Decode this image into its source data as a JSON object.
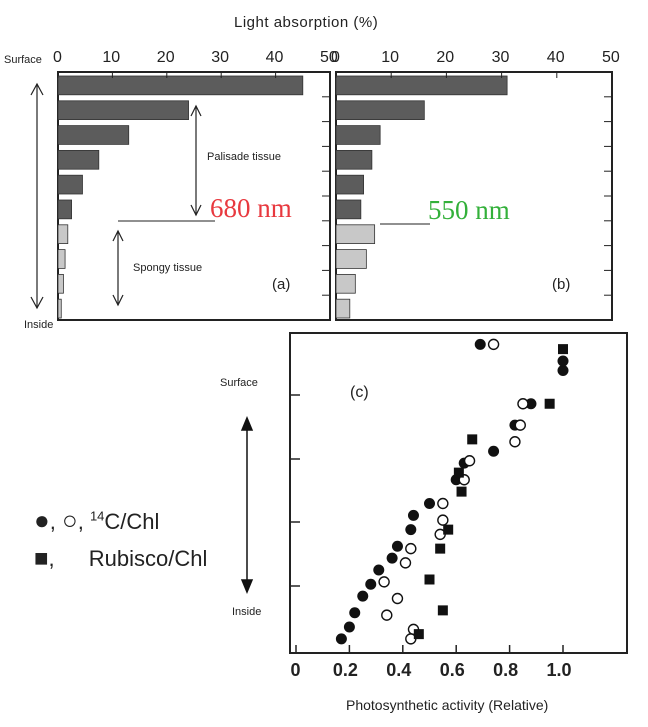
{
  "header": {
    "title": "Light absorption (%)"
  },
  "panel_a": {
    "tag": "(a)",
    "wavelength": "680 nm",
    "wavelength_color": "#e8393f"
  },
  "panel_b": {
    "tag": "(b)",
    "wavelength": "550 nm",
    "wavelength_color": "#33b03a"
  },
  "panel_c": {
    "tag": "(c)"
  },
  "labels": {
    "surface": "Surface",
    "inside": "Inside",
    "palisade": "Palisade tissue",
    "spongy": "Spongy tissue",
    "surface_c": "Surface",
    "inside_c": "Inside"
  },
  "legend": {
    "filled_marker": "●",
    "sep1": ",",
    "open_marker": "○",
    "sep2": ",",
    "carbon_sup": "14",
    "carbon_text": "C/Chl",
    "square_marker": "■",
    "sep3": ",",
    "rubisco_text": "Rubisco/Chl"
  },
  "chart_data": [
    {
      "type": "bar",
      "orientation": "horizontal",
      "panel": "(a)",
      "annotation": "680 nm",
      "xlabel": "Light absorption (%)",
      "xlim": [
        0,
        50
      ],
      "xticks": [
        0,
        10,
        20,
        30,
        40,
        50
      ],
      "values": [
        45,
        24,
        13,
        7.5,
        4.5,
        2.5,
        1.8,
        1.3,
        1.0,
        0.6
      ],
      "tissue": [
        "palisade",
        "palisade",
        "palisade",
        "palisade",
        "palisade",
        "palisade",
        "spongy",
        "spongy",
        "spongy",
        "spongy"
      ]
    },
    {
      "type": "bar",
      "orientation": "horizontal",
      "panel": "(b)",
      "annotation": "550 nm",
      "xlabel": "Light absorption (%)",
      "xlim": [
        0,
        50
      ],
      "xticks": [
        0,
        10,
        20,
        30,
        40,
        50
      ],
      "values": [
        31,
        16,
        8,
        6.5,
        5,
        4.5,
        7,
        5.5,
        3.5,
        2.5
      ],
      "tissue": [
        "palisade",
        "palisade",
        "palisade",
        "palisade",
        "palisade",
        "palisade",
        "spongy",
        "spongy",
        "spongy",
        "spongy"
      ]
    },
    {
      "type": "scatter",
      "panel": "(c)",
      "xlabel": "Photosynthetic activity (Relative)",
      "xlim": [
        0,
        1.2
      ],
      "xticks": [
        "0",
        "0.2",
        "0.4",
        "0.6",
        "0.8",
        "1.0"
      ],
      "xtick_values": [
        0,
        0.2,
        0.4,
        0.6,
        0.8,
        1.0
      ],
      "ylabel_top": "Surface",
      "ylabel_bottom": "Inside",
      "series": [
        {
          "name": "14C/Chl (filled)",
          "marker": "filled-circle",
          "points": [
            [
              0.69,
              0.05
            ],
            [
              1.0,
              0.6
            ],
            [
              1.0,
              0.4
            ],
            [
              0.88,
              1.3
            ],
            [
              0.82,
              1.75
            ],
            [
              0.74,
              2.3
            ],
            [
              0.63,
              2.55
            ],
            [
              0.6,
              2.9
            ],
            [
              0.5,
              3.4
            ],
            [
              0.44,
              3.65
            ],
            [
              0.43,
              3.95
            ],
            [
              0.38,
              4.3
            ],
            [
              0.36,
              4.55
            ],
            [
              0.31,
              4.8
            ],
            [
              0.28,
              5.1
            ],
            [
              0.25,
              5.35
            ],
            [
              0.22,
              5.7
            ],
            [
              0.2,
              6.0
            ],
            [
              0.17,
              6.25
            ]
          ]
        },
        {
          "name": "14C/Chl (open)",
          "marker": "open-circle",
          "points": [
            [
              0.74,
              0.05
            ],
            [
              0.85,
              1.3
            ],
            [
              0.84,
              1.75
            ],
            [
              0.82,
              2.1
            ],
            [
              0.65,
              2.5
            ],
            [
              0.63,
              2.9
            ],
            [
              0.55,
              3.4
            ],
            [
              0.55,
              3.75
            ],
            [
              0.54,
              4.05
            ],
            [
              0.43,
              4.35
            ],
            [
              0.41,
              4.65
            ],
            [
              0.33,
              5.05
            ],
            [
              0.38,
              5.4
            ],
            [
              0.34,
              5.75
            ],
            [
              0.44,
              6.05
            ],
            [
              0.43,
              6.25
            ]
          ]
        },
        {
          "name": "Rubisco/Chl",
          "marker": "filled-square",
          "points": [
            [
              1.0,
              0.15
            ],
            [
              0.95,
              1.3
            ],
            [
              0.66,
              2.05
            ],
            [
              0.61,
              2.75
            ],
            [
              0.62,
              3.15
            ],
            [
              0.57,
              3.95
            ],
            [
              0.54,
              4.35
            ],
            [
              0.5,
              5.0
            ],
            [
              0.55,
              5.65
            ],
            [
              0.46,
              6.15
            ]
          ]
        }
      ]
    }
  ]
}
